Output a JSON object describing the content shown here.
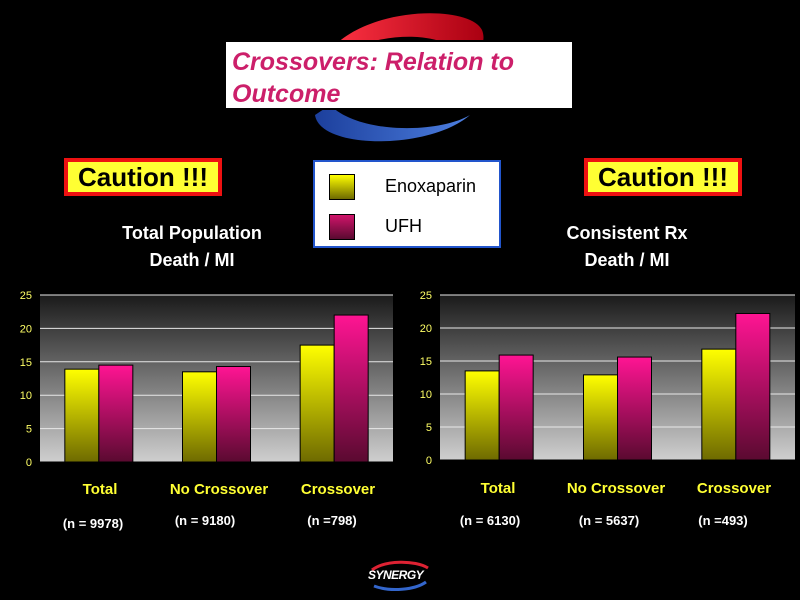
{
  "header": {
    "title": "Crossovers: Relation to Outcome"
  },
  "cautions": [
    "Caution !!!",
    "Caution !!!"
  ],
  "legend": [
    {
      "name": "Enoxaparin",
      "color": "#ffff00"
    },
    {
      "name": "UFH",
      "color": "#b0104e"
    }
  ],
  "logo": {
    "text": "SYNERGY"
  },
  "colors": {
    "enox_top": "#ffff00",
    "enox_bottom": "#6e6a00",
    "ufh_top": "#ff1493",
    "ufh_bottom": "#5a0a30",
    "title": "#cc1f6a"
  },
  "chart_data": [
    {
      "type": "bar",
      "title_line1": "Total Population",
      "title_line2": "Death / MI",
      "categories": [
        "Total",
        "No Crossover",
        "Crossover"
      ],
      "n_labels": [
        "(n = 9978)",
        "(n = 9180)",
        "(n =798)"
      ],
      "series": [
        {
          "name": "Enoxaparin",
          "values": [
            13.9,
            13.5,
            17.5
          ]
        },
        {
          "name": "UFH",
          "values": [
            14.5,
            14.3,
            22.0
          ]
        }
      ],
      "ylim": [
        0,
        25
      ],
      "yticks": [
        0,
        5,
        10,
        15,
        20,
        25
      ]
    },
    {
      "type": "bar",
      "title_line1": "Consistent Rx",
      "title_line2": "Death / MI",
      "categories": [
        "Total",
        "No Crossover",
        "Crossover"
      ],
      "n_labels": [
        "(n = 6130)",
        "(n = 5637)",
        "(n =493)"
      ],
      "series": [
        {
          "name": "Enoxaparin",
          "values": [
            13.5,
            12.9,
            16.8
          ]
        },
        {
          "name": "UFH",
          "values": [
            15.9,
            15.6,
            22.2
          ]
        }
      ],
      "ylim": [
        0,
        25
      ],
      "yticks": [
        0,
        5,
        10,
        15,
        20,
        25
      ]
    }
  ]
}
